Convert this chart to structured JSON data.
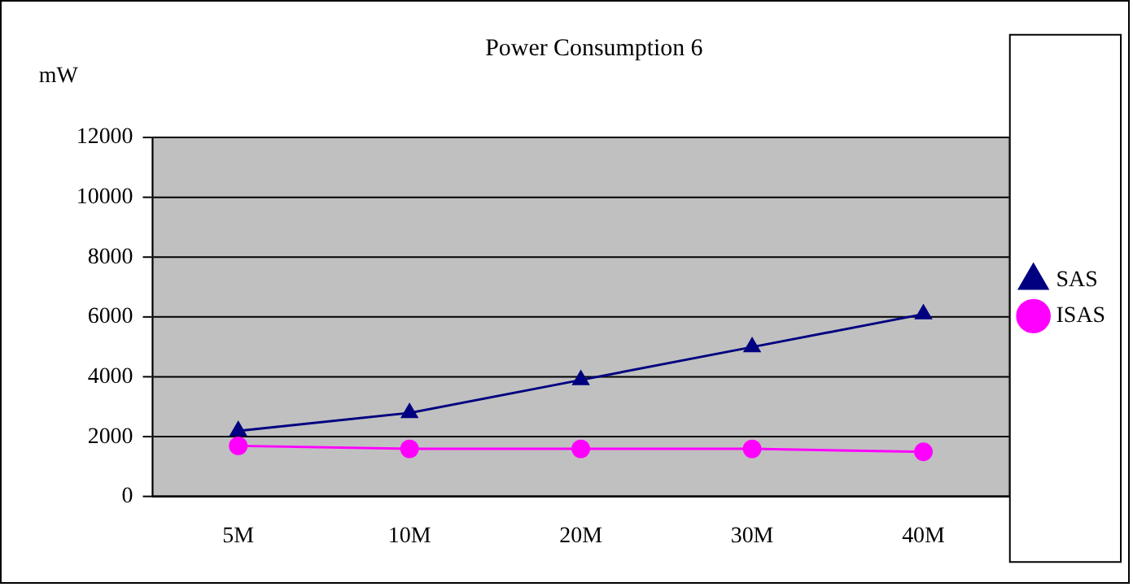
{
  "chart_data": {
    "type": "line",
    "title": "Power Consumption 6",
    "ylabel": "mW",
    "categories": [
      "5M",
      "10M",
      "20M",
      "30M",
      "40M"
    ],
    "series": [
      {
        "name": "SAS",
        "color": "#000080",
        "marker": "triangle",
        "values": [
          2200,
          2800,
          3900,
          5000,
          6100
        ]
      },
      {
        "name": "ISAS",
        "color": "#ff00ff",
        "marker": "circle",
        "values": [
          1700,
          1600,
          1600,
          1600,
          1500
        ]
      }
    ],
    "ylim": [
      0,
      12000
    ],
    "yticks": [
      0,
      2000,
      4000,
      6000,
      8000,
      10000,
      12000
    ],
    "grid": "y",
    "legend": "right",
    "line_style": "solid"
  }
}
